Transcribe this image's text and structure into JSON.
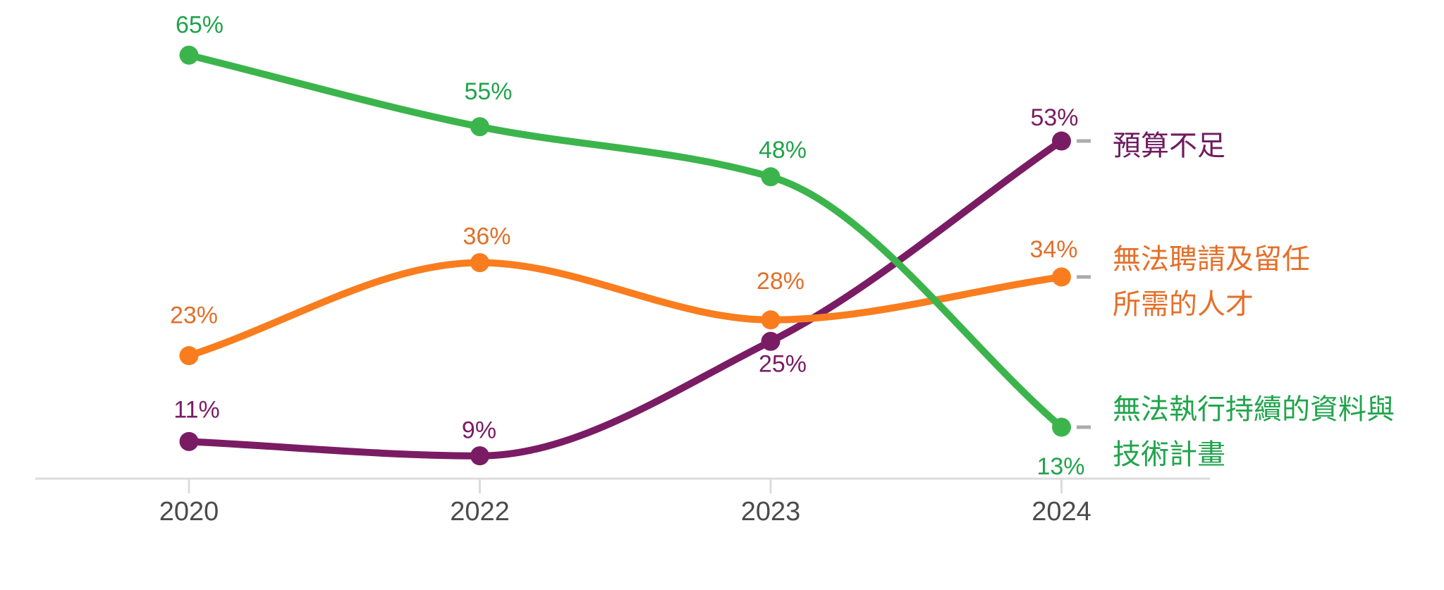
{
  "chart_data": {
    "type": "line",
    "title": "",
    "categories": [
      "2020",
      "2022",
      "2023",
      "2024"
    ],
    "value_unit": "%",
    "grid": "off",
    "y_axis_visible": false,
    "legend_position": "right-of-last-point",
    "series": [
      {
        "id": "budget",
        "legend_lines": [
          "預算不足"
        ],
        "values": [
          11,
          9,
          25,
          53
        ],
        "point_labels": [
          "11%",
          "9%",
          "25%",
          "53%"
        ],
        "line_color": "#7A1C64",
        "label_color": "#7A1C64",
        "legend_color": "#6E1C60"
      },
      {
        "id": "talent",
        "legend_lines": [
          "無法聘請及留任",
          "所需的人才"
        ],
        "values": [
          23,
          36,
          28,
          34
        ],
        "point_labels": [
          "23%",
          "36%",
          "28%",
          "34%"
        ],
        "line_color": "#F97D1E",
        "label_color": "#E0702A",
        "legend_color": "#E4702A"
      },
      {
        "id": "data-program",
        "legend_lines": [
          "無法執行持續的資料與",
          "技術計畫"
        ],
        "values": [
          65,
          55,
          48,
          13
        ],
        "point_labels": [
          "65%",
          "55%",
          "48%",
          "13%"
        ],
        "line_color": "#3CB44C",
        "label_color": "#21A34B",
        "legend_color": "#21A44C"
      }
    ],
    "colors": {
      "axis_line": "#DCDCDC",
      "tick": "#DCDCDC",
      "axis_label": "#4B4B4B",
      "leader_dash": "#ABABAB",
      "background": "#FFFFFF"
    }
  }
}
